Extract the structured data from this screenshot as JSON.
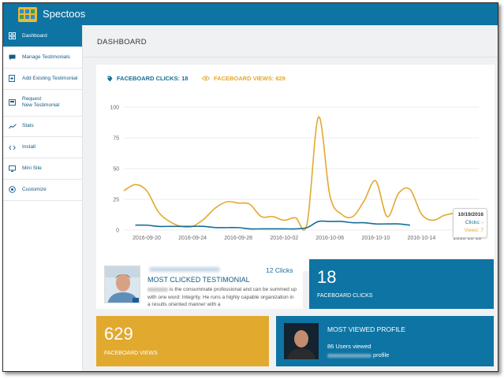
{
  "app": {
    "name": "Spectoos"
  },
  "sidebar": {
    "items": [
      {
        "label": "Dashboard",
        "icon": "dashboard-grid-icon"
      },
      {
        "label": "Manage Testimonials",
        "icon": "comment-icon"
      },
      {
        "label": "Add Existing Testimonial",
        "icon": "document-add-icon"
      },
      {
        "label": "Request\nNew Testimonial",
        "icon": "request-icon"
      },
      {
        "label": "Stats",
        "icon": "stats-icon"
      },
      {
        "label": "Install",
        "icon": "code-icon"
      },
      {
        "label": "Mini Site",
        "icon": "monitor-icon"
      },
      {
        "label": "Customize",
        "icon": "settings-circle-icon"
      }
    ]
  },
  "main": {
    "title": "DASHBOARD"
  },
  "stats": {
    "clicks_label": "FACEBOARD CLICKS: 18",
    "views_label": "FACEBOARD VIEWS: 629"
  },
  "colors": {
    "accent": "#0e74a3",
    "views": "#e2a92f",
    "clicks": "#176d99",
    "background": "#f0f1f3"
  },
  "chart_data": {
    "type": "line",
    "x": [
      "2016-09-18",
      "2016-09-19",
      "2016-09-20",
      "2016-09-21",
      "2016-09-22",
      "2016-09-23",
      "2016-09-24",
      "2016-09-25",
      "2016-09-26",
      "2016-09-27",
      "2016-09-28",
      "2016-09-29",
      "2016-09-30",
      "2016-10-01",
      "2016-10-02",
      "2016-10-03",
      "2016-10-04",
      "2016-10-05",
      "2016-10-06",
      "2016-10-07",
      "2016-10-08",
      "2016-10-09",
      "2016-10-10",
      "2016-10-11",
      "2016-10-12",
      "2016-10-13",
      "2016-10-14",
      "2016-10-15",
      "2016-10-16",
      "2016-10-17",
      "2016-10-18",
      "2016-10-19"
    ],
    "series": [
      {
        "name": "Views",
        "values": [
          32,
          37,
          32,
          15,
          7,
          3,
          3,
          9,
          18,
          23,
          22,
          21,
          11,
          11,
          8,
          10,
          5,
          92,
          28,
          13,
          11,
          24,
          40,
          11,
          30,
          33,
          13,
          8,
          12,
          14,
          null,
          7
        ]
      },
      {
        "name": "Clicks",
        "values": [
          null,
          4,
          4,
          3,
          3,
          3,
          3,
          3,
          2,
          2,
          2,
          1,
          1,
          1,
          1,
          1,
          2,
          7,
          7,
          7,
          6,
          6,
          5,
          5,
          5,
          4,
          null,
          null,
          null,
          null,
          null,
          null
        ]
      }
    ],
    "xticks": [
      "2016-09-20",
      "2016-09-24",
      "2016-09-28",
      "2016-10-02",
      "2016-10-06",
      "2016-10-10",
      "2016-10-14",
      "2016-10-18"
    ],
    "yticks": [
      0,
      25,
      50,
      75,
      100
    ],
    "ylim": [
      0,
      100
    ],
    "grid": true,
    "tooltip": {
      "date": "10/19/2016",
      "clicks": "Clicks: -",
      "views": "Views: 7"
    }
  },
  "testimonial": {
    "clicks": "12 Clicks",
    "title": "MOST CLICKED TESTIMONIAL",
    "text": "is the consummate professional and can be summed up with one word: Integrity. He runs a highly capable organization in a results oriented manner with a"
  },
  "faceboard_clicks": {
    "value": "18",
    "label": "FACEBOARD CLICKS"
  },
  "faceboard_views": {
    "value": "629",
    "label": "FACEBOARD VIEWS"
  },
  "most_viewed": {
    "title": "MOST VIEWED PROFILE",
    "users": "86 Users viewed",
    "suffix": "profile"
  }
}
